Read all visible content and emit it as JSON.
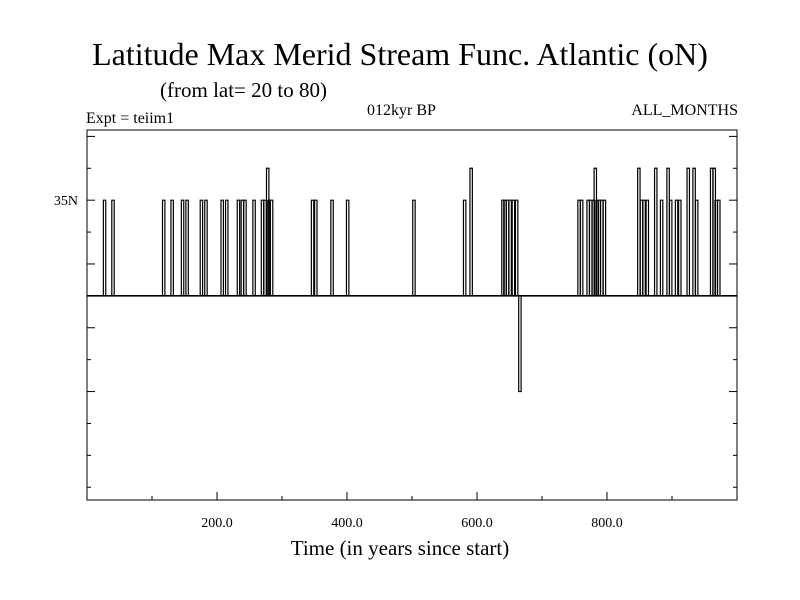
{
  "chart_data": {
    "type": "line",
    "title": "Latitude Max Merid Stream Func. Atlantic (oN)",
    "subtitle": "(from lat= 20 to 80)",
    "header_left": "Expt = teiim1",
    "header_center": "012kyr BP",
    "header_right": "ALL_MONTHS",
    "xlabel": "Time (in years since start)",
    "ylabel": "",
    "xlim": [
      0,
      1000
    ],
    "ylim": [
      -12,
      46
    ],
    "x_ticks": [
      200,
      400,
      600,
      800
    ],
    "x_tick_labels": [
      "200.0",
      "400.0",
      "600.0",
      "800.0"
    ],
    "y_tick_labels": [
      {
        "value": 35,
        "label": "35N"
      }
    ],
    "baseline": 20,
    "series": [
      {
        "color": "#000000",
        "spikes": [
          {
            "x": 27,
            "y": 35
          },
          {
            "x": 40,
            "y": 35
          },
          {
            "x": 118,
            "y": 35
          },
          {
            "x": 131,
            "y": 35
          },
          {
            "x": 147,
            "y": 35
          },
          {
            "x": 154,
            "y": 35
          },
          {
            "x": 176,
            "y": 35
          },
          {
            "x": 183,
            "y": 35
          },
          {
            "x": 208,
            "y": 35
          },
          {
            "x": 215,
            "y": 35
          },
          {
            "x": 233,
            "y": 35
          },
          {
            "x": 239,
            "y": 35
          },
          {
            "x": 243,
            "y": 35
          },
          {
            "x": 257,
            "y": 35
          },
          {
            "x": 270,
            "y": 35
          },
          {
            "x": 274,
            "y": 35
          },
          {
            "x": 278,
            "y": 40
          },
          {
            "x": 280,
            "y": 35
          },
          {
            "x": 284,
            "y": 35
          },
          {
            "x": 347,
            "y": 35
          },
          {
            "x": 352,
            "y": 35
          },
          {
            "x": 377,
            "y": 35
          },
          {
            "x": 401,
            "y": 35
          },
          {
            "x": 503,
            "y": 35
          },
          {
            "x": 581,
            "y": 35
          },
          {
            "x": 591,
            "y": 40
          },
          {
            "x": 640,
            "y": 35
          },
          {
            "x": 643,
            "y": 35
          },
          {
            "x": 647,
            "y": 35
          },
          {
            "x": 651,
            "y": 35
          },
          {
            "x": 656,
            "y": 35
          },
          {
            "x": 661,
            "y": 35
          },
          {
            "x": 666,
            "y": 5
          },
          {
            "x": 757,
            "y": 35
          },
          {
            "x": 761,
            "y": 35
          },
          {
            "x": 771,
            "y": 35
          },
          {
            "x": 775,
            "y": 35
          },
          {
            "x": 779,
            "y": 35
          },
          {
            "x": 782,
            "y": 40
          },
          {
            "x": 785,
            "y": 35
          },
          {
            "x": 788,
            "y": 35
          },
          {
            "x": 792,
            "y": 35
          },
          {
            "x": 796,
            "y": 35
          },
          {
            "x": 849,
            "y": 40
          },
          {
            "x": 853,
            "y": 35
          },
          {
            "x": 857,
            "y": 35
          },
          {
            "x": 862,
            "y": 35
          },
          {
            "x": 875,
            "y": 40
          },
          {
            "x": 884,
            "y": 35
          },
          {
            "x": 894,
            "y": 40
          },
          {
            "x": 898,
            "y": 35
          },
          {
            "x": 907,
            "y": 35
          },
          {
            "x": 912,
            "y": 35
          },
          {
            "x": 925,
            "y": 40
          },
          {
            "x": 934,
            "y": 40
          },
          {
            "x": 938,
            "y": 35
          },
          {
            "x": 961,
            "y": 40
          },
          {
            "x": 965,
            "y": 40
          },
          {
            "x": 968,
            "y": 35
          },
          {
            "x": 972,
            "y": 35
          }
        ]
      }
    ],
    "grid": false
  }
}
